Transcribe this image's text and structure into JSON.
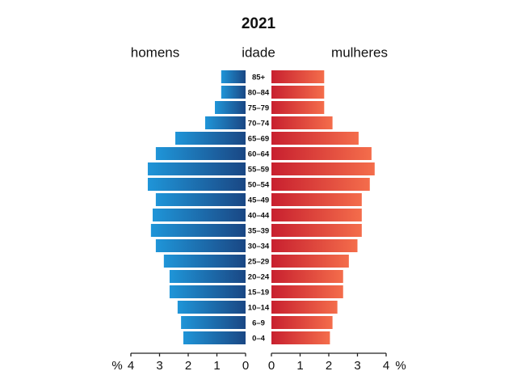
{
  "chart_data": {
    "type": "pyramid",
    "title": "2021",
    "category_label": "idade",
    "x_label": "%",
    "categories": [
      "85+",
      "80–84",
      "75–79",
      "70–74",
      "65–69",
      "60–64",
      "55–59",
      "50–54",
      "45–49",
      "40–44",
      "35–39",
      "30–34",
      "25–29",
      "20–24",
      "15–19",
      "10–14",
      "6–9",
      "0–4"
    ],
    "series": [
      {
        "name": "homens",
        "side": "left",
        "gradient": [
          "#1a4784",
          "#1f95d8"
        ],
        "values": [
          0.85,
          0.85,
          1.07,
          1.41,
          2.45,
          3.13,
          3.41,
          3.41,
          3.13,
          3.24,
          3.3,
          3.13,
          2.85,
          2.65,
          2.65,
          2.37,
          2.25,
          2.17
        ]
      },
      {
        "name": "mulheres",
        "side": "right",
        "gradient": [
          "#c8202f",
          "#f46d4b"
        ],
        "values": [
          1.84,
          1.84,
          1.84,
          2.13,
          3.04,
          3.49,
          3.6,
          3.43,
          3.15,
          3.15,
          3.15,
          3.0,
          2.7,
          2.5,
          2.5,
          2.3,
          2.13,
          2.04
        ]
      }
    ],
    "xlim": [
      0,
      4
    ],
    "xticks": [
      0,
      1,
      2,
      3,
      4
    ]
  }
}
